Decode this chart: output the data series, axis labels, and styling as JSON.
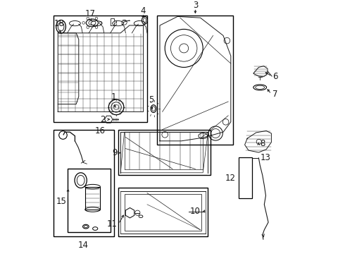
{
  "bg_color": "#ffffff",
  "line_color": "#1a1a1a",
  "label_fs": 8.5,
  "lw": 0.8,
  "boxes": {
    "16": [
      0.03,
      0.52,
      0.4,
      0.94
    ],
    "3": [
      0.44,
      0.43,
      0.74,
      0.94
    ],
    "14": [
      0.03,
      0.07,
      0.27,
      0.49
    ],
    "15": [
      0.085,
      0.085,
      0.255,
      0.335
    ],
    "9": [
      0.285,
      0.31,
      0.65,
      0.49
    ],
    "10": [
      0.285,
      0.07,
      0.64,
      0.26
    ]
  },
  "labels": {
    "16": [
      0.215,
      0.503,
      "center",
      "top"
    ],
    "3": [
      0.59,
      0.96,
      "center",
      "bottom"
    ],
    "14": [
      0.148,
      0.053,
      "center",
      "top"
    ],
    "15": [
      0.082,
      0.208,
      "right",
      "center"
    ],
    "9": [
      0.282,
      0.398,
      "right",
      "center"
    ],
    "10": [
      0.568,
      0.168,
      "left",
      "center"
    ],
    "18": [
      0.053,
      0.888,
      "center",
      "bottom"
    ],
    "17": [
      0.175,
      0.928,
      "center",
      "bottom"
    ],
    "4": [
      0.385,
      0.94,
      "center",
      "bottom"
    ],
    "1": [
      0.268,
      0.6,
      "center",
      "bottom"
    ],
    "5": [
      0.415,
      0.59,
      "center",
      "bottom"
    ],
    "2": [
      0.235,
      0.53,
      "right",
      "center"
    ],
    "6": [
      0.895,
      0.7,
      "left",
      "center"
    ],
    "7": [
      0.895,
      0.63,
      "left",
      "center"
    ],
    "8": [
      0.845,
      0.435,
      "left",
      "center"
    ],
    "11": [
      0.282,
      0.118,
      "right",
      "center"
    ],
    "12": [
      0.748,
      0.298,
      "right",
      "center"
    ],
    "13": [
      0.845,
      0.378,
      "left",
      "center"
    ]
  }
}
